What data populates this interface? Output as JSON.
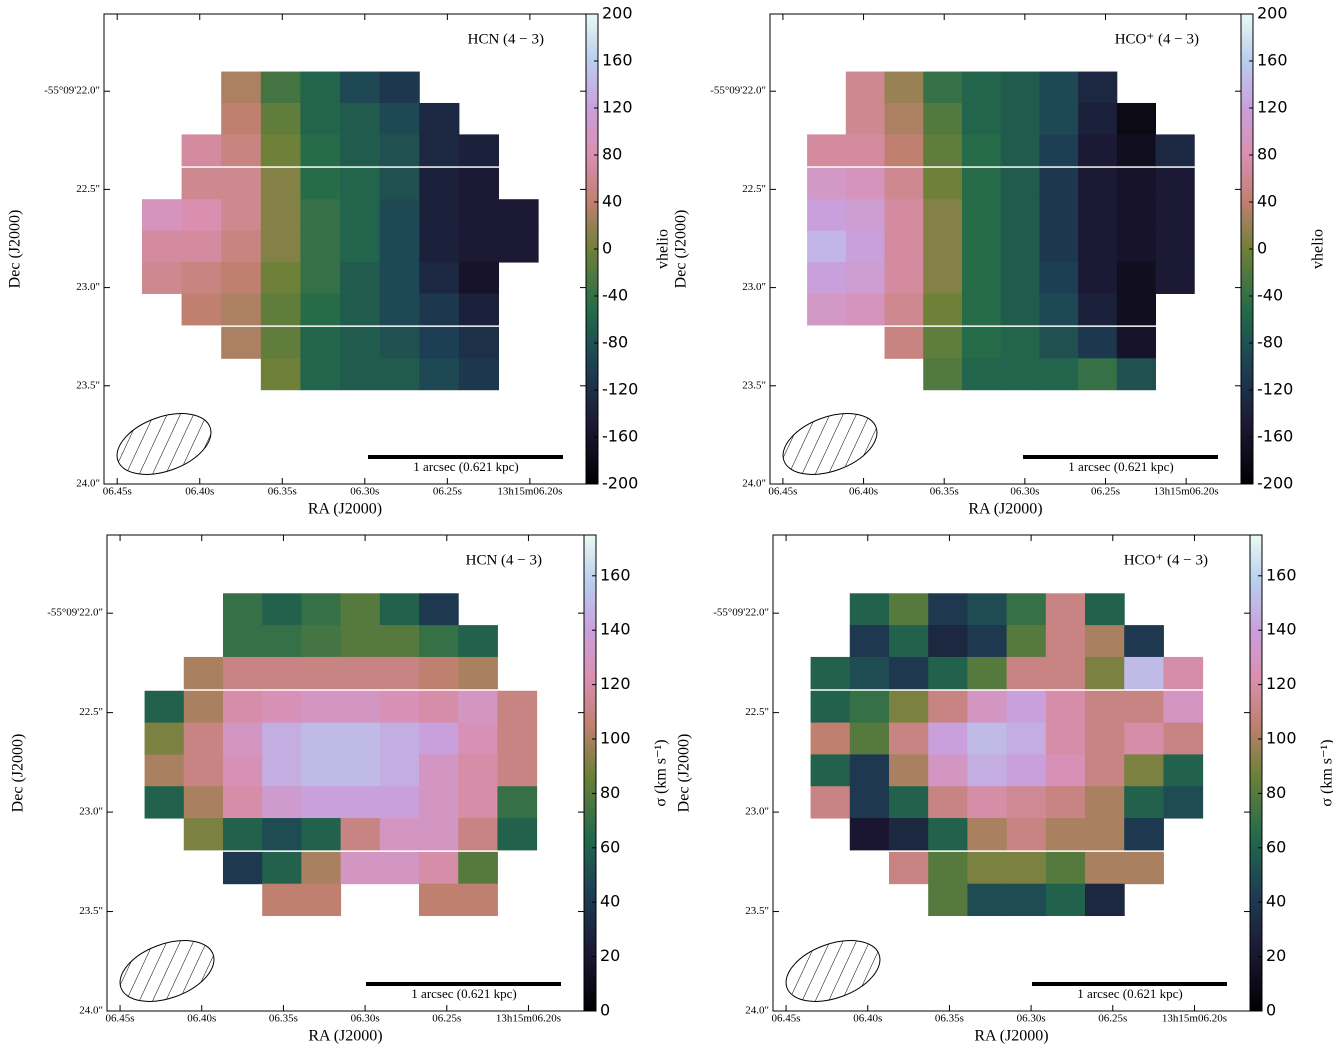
{
  "chart_data": [
    {
      "type": "heatmap",
      "title": "HCN (4 − 3)",
      "x_label": "RA (J2000)",
      "y_label": "Dec (J2000)",
      "colorbar_label": "vhelio",
      "scale_bar_label": "1 arcsec (0.621 kpc)",
      "xlim": [
        6.458,
        6.166
      ],
      "xticks": [
        {
          "value": 6.45,
          "label": "06.45s"
        },
        {
          "value": 6.4,
          "label": "06.40s"
        },
        {
          "value": 6.35,
          "label": "06.35s"
        },
        {
          "value": 6.3,
          "label": "06.30s"
        },
        {
          "value": 6.25,
          "label": "06.25s"
        },
        {
          "value": 6.2,
          "label": "13h15m06.20s"
        }
      ],
      "ylim": [
        24.0,
        21.607
      ],
      "yticks": [
        {
          "value": 22.0,
          "label": "-55°09'22.0\""
        },
        {
          "value": 22.5,
          "label": "22.5\""
        },
        {
          "value": 23.0,
          "label": "23.0\""
        },
        {
          "value": 23.5,
          "label": "23.5\""
        },
        {
          "value": 24.0,
          "label": "24.0\""
        }
      ],
      "zlim": [
        -200,
        200
      ],
      "zticks": [
        -200,
        -160,
        -120,
        -80,
        -40,
        0,
        40,
        80,
        120,
        160,
        200
      ],
      "x": [
        6.423,
        6.399,
        6.375,
        6.351,
        6.327,
        6.303,
        6.279,
        6.255,
        6.231,
        6.207
      ],
      "y": [
        21.98,
        22.14,
        22.3,
        22.47,
        22.63,
        22.79,
        22.95,
        23.11,
        23.28,
        23.44
      ],
      "z": [
        [
          null,
          null,
          30,
          -30,
          -60,
          -90,
          -110,
          null,
          null,
          null
        ],
        [
          null,
          null,
          40,
          -10,
          -60,
          -70,
          -90,
          -130,
          null,
          null
        ],
        [
          null,
          70,
          50,
          0,
          -50,
          -70,
          -80,
          -130,
          -140,
          null
        ],
        [
          null,
          60,
          60,
          10,
          -50,
          -60,
          -80,
          -140,
          -150,
          null
        ],
        [
          90,
          80,
          60,
          10,
          -40,
          -60,
          -90,
          -140,
          -150,
          -150
        ],
        [
          70,
          70,
          50,
          10,
          -40,
          -60,
          -90,
          -140,
          -150,
          -150
        ],
        [
          60,
          50,
          40,
          0,
          -40,
          -70,
          -90,
          -130,
          -160,
          null
        ],
        [
          null,
          40,
          30,
          -10,
          -50,
          -70,
          -90,
          -110,
          -140,
          null
        ],
        [
          null,
          null,
          30,
          -10,
          -60,
          -70,
          -80,
          -100,
          -120,
          null
        ],
        [
          null,
          null,
          null,
          0,
          -60,
          -70,
          -70,
          -90,
          -110,
          null
        ]
      ]
    },
    {
      "type": "heatmap",
      "title": "HCO⁺ (4 − 3)",
      "x_label": "RA (J2000)",
      "y_label": "Dec (J2000)",
      "colorbar_label": "vhelio",
      "scale_bar_label": "1 arcsec (0.621 kpc)",
      "xlim": [
        6.458,
        6.166
      ],
      "xticks": [
        {
          "value": 6.45,
          "label": "06.45s"
        },
        {
          "value": 6.4,
          "label": "06.40s"
        },
        {
          "value": 6.35,
          "label": "06.35s"
        },
        {
          "value": 6.3,
          "label": "06.30s"
        },
        {
          "value": 6.25,
          "label": "06.25s"
        },
        {
          "value": 6.2,
          "label": "13h15m06.20s"
        }
      ],
      "ylim": [
        24.0,
        21.607
      ],
      "yticks": [
        {
          "value": 22.0,
          "label": "-55°09'22.0\""
        },
        {
          "value": 22.5,
          "label": "22.5\""
        },
        {
          "value": 23.0,
          "label": "23.0\""
        },
        {
          "value": 23.5,
          "label": "23.5\""
        },
        {
          "value": 24.0,
          "label": "24.0\""
        }
      ],
      "zlim": [
        -200,
        200
      ],
      "zticks": [
        -200,
        -160,
        -120,
        -80,
        -40,
        0,
        40,
        80,
        120,
        160,
        200
      ],
      "x": [
        6.423,
        6.399,
        6.375,
        6.351,
        6.327,
        6.303,
        6.279,
        6.255,
        6.231,
        6.207
      ],
      "y": [
        21.98,
        22.14,
        22.3,
        22.47,
        22.63,
        22.79,
        22.95,
        23.11,
        23.28,
        23.44
      ],
      "z": [
        [
          null,
          60,
          20,
          -40,
          -60,
          -70,
          -90,
          -130,
          null,
          null
        ],
        [
          null,
          60,
          30,
          -20,
          -60,
          -70,
          -90,
          -140,
          -180,
          null
        ],
        [
          70,
          70,
          40,
          -10,
          -50,
          -70,
          -100,
          -150,
          -170,
          -130
        ],
        [
          100,
          90,
          60,
          0,
          -50,
          -70,
          -110,
          -150,
          -160,
          -150
        ],
        [
          120,
          110,
          70,
          10,
          -50,
          -70,
          -110,
          -150,
          -160,
          -150
        ],
        [
          140,
          120,
          70,
          10,
          -50,
          -70,
          -110,
          -150,
          -160,
          -150
        ],
        [
          120,
          110,
          70,
          10,
          -50,
          -70,
          -100,
          -150,
          -170,
          -150
        ],
        [
          100,
          90,
          60,
          0,
          -50,
          -70,
          -90,
          -140,
          -170,
          null
        ],
        [
          null,
          null,
          50,
          -10,
          -50,
          -60,
          -80,
          -110,
          -160,
          null
        ],
        [
          null,
          null,
          null,
          -20,
          -60,
          -60,
          -60,
          -40,
          -80,
          null
        ]
      ]
    },
    {
      "type": "heatmap",
      "title": "HCN (4 − 3)",
      "x_label": "RA (J2000)",
      "y_label": "Dec (J2000)",
      "colorbar_label": "σ (km s⁻¹)",
      "scale_bar_label": "1 arcsec (0.621 kpc)",
      "xlim": [
        6.458,
        6.166
      ],
      "xticks": [
        {
          "value": 6.45,
          "label": "06.45s"
        },
        {
          "value": 6.4,
          "label": "06.40s"
        },
        {
          "value": 6.35,
          "label": "06.35s"
        },
        {
          "value": 6.3,
          "label": "06.30s"
        },
        {
          "value": 6.25,
          "label": "06.25s"
        },
        {
          "value": 6.2,
          "label": "13h15m06.20s"
        }
      ],
      "ylim": [
        24.0,
        21.607
      ],
      "yticks": [
        {
          "value": 22.0,
          "label": "-55°09'22.0\""
        },
        {
          "value": 22.5,
          "label": "22.5\""
        },
        {
          "value": 23.0,
          "label": "23.0\""
        },
        {
          "value": 23.5,
          "label": "23.5\""
        },
        {
          "value": 24.0,
          "label": "24.0\""
        }
      ],
      "zlim": [
        0,
        175
      ],
      "zticks": [
        0,
        20,
        40,
        60,
        80,
        100,
        120,
        140,
        160
      ],
      "x": [
        6.423,
        6.399,
        6.375,
        6.351,
        6.327,
        6.303,
        6.279,
        6.255,
        6.231,
        6.207
      ],
      "y": [
        21.98,
        22.14,
        22.3,
        22.47,
        22.63,
        22.79,
        22.95,
        23.11,
        23.28,
        23.44
      ],
      "z": [
        [
          null,
          null,
          70,
          60,
          70,
          80,
          60,
          40,
          null,
          null
        ],
        [
          null,
          null,
          70,
          70,
          75,
          80,
          80,
          70,
          60,
          null
        ],
        [
          null,
          100,
          110,
          110,
          110,
          110,
          110,
          105,
          100,
          null
        ],
        [
          60,
          100,
          120,
          125,
          130,
          130,
          125,
          120,
          130,
          110
        ],
        [
          90,
          110,
          130,
          145,
          150,
          150,
          145,
          140,
          125,
          110
        ],
        [
          100,
          110,
          125,
          145,
          150,
          150,
          145,
          130,
          120,
          110
        ],
        [
          60,
          100,
          120,
          135,
          140,
          140,
          140,
          130,
          120,
          70
        ],
        [
          null,
          90,
          60,
          50,
          60,
          110,
          130,
          130,
          110,
          60
        ],
        [
          null,
          null,
          40,
          60,
          100,
          130,
          130,
          120,
          80,
          null
        ],
        [
          null,
          null,
          null,
          105,
          105,
          null,
          null,
          105,
          105,
          null
        ]
      ]
    },
    {
      "type": "heatmap",
      "title": "HCO⁺ (4 − 3)",
      "x_label": "RA (J2000)",
      "y_label": "Dec (J2000)",
      "colorbar_label": "σ (km s⁻¹)",
      "scale_bar_label": "1 arcsec (0.621 kpc)",
      "xlim": [
        6.458,
        6.166
      ],
      "xticks": [
        {
          "value": 6.45,
          "label": "06.45s"
        },
        {
          "value": 6.4,
          "label": "06.40s"
        },
        {
          "value": 6.35,
          "label": "06.35s"
        },
        {
          "value": 6.3,
          "label": "06.30s"
        },
        {
          "value": 6.25,
          "label": "06.25s"
        },
        {
          "value": 6.2,
          "label": "13h15m06.20s"
        }
      ],
      "ylim": [
        24.0,
        21.607
      ],
      "yticks": [
        {
          "value": 22.0,
          "label": "-55°09'22.0\""
        },
        {
          "value": 22.5,
          "label": "22.5\""
        },
        {
          "value": 23.0,
          "label": "23.0\""
        },
        {
          "value": 23.5,
          "label": "23.5\""
        },
        {
          "value": 24.0,
          "label": "24.0\""
        }
      ],
      "zlim": [
        0,
        175
      ],
      "zticks": [
        0,
        20,
        40,
        60,
        80,
        100,
        120,
        140,
        160
      ],
      "x": [
        6.423,
        6.399,
        6.375,
        6.351,
        6.327,
        6.303,
        6.279,
        6.255,
        6.231,
        6.207
      ],
      "y": [
        21.98,
        22.14,
        22.3,
        22.47,
        22.63,
        22.79,
        22.95,
        23.11,
        23.28,
        23.44
      ],
      "z": [
        [
          null,
          60,
          80,
          40,
          50,
          70,
          110,
          60,
          null,
          null
        ],
        [
          null,
          40,
          60,
          30,
          40,
          80,
          110,
          100,
          40,
          null
        ],
        [
          60,
          50,
          40,
          60,
          80,
          110,
          110,
          90,
          150,
          120
        ],
        [
          60,
          70,
          90,
          110,
          130,
          140,
          120,
          110,
          110,
          130
        ],
        [
          105,
          80,
          110,
          140,
          150,
          145,
          120,
          110,
          120,
          110
        ],
        [
          60,
          40,
          100,
          130,
          145,
          140,
          125,
          110,
          90,
          60
        ],
        [
          110,
          40,
          60,
          110,
          120,
          115,
          110,
          100,
          60,
          50
        ],
        [
          null,
          20,
          30,
          60,
          100,
          110,
          100,
          100,
          40,
          null
        ],
        [
          null,
          null,
          110,
          80,
          90,
          90,
          80,
          100,
          100,
          null
        ],
        [
          null,
          null,
          null,
          80,
          50,
          50,
          60,
          30,
          null,
          null
        ]
      ]
    }
  ]
}
